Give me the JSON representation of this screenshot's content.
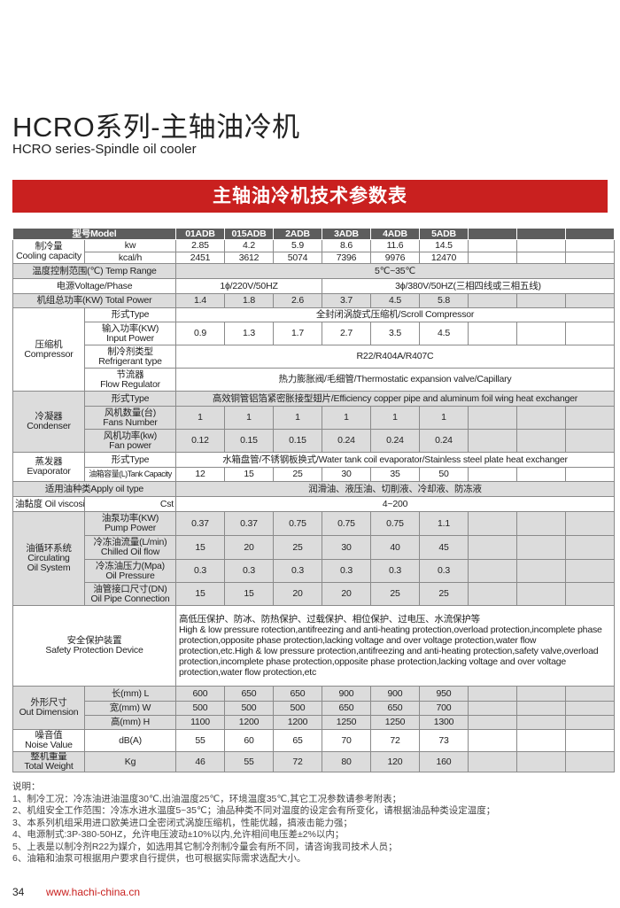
{
  "title": "HCRO系列-主轴油冷机",
  "subtitle": "HCRO series-Spindle oil cooler",
  "banner": "主轴油冷机技术参数表",
  "colors": {
    "banner": "#c9201f",
    "header_row": "#5d5d5d",
    "shaded_row": "#dcdcdc",
    "website": "#c9201f"
  },
  "table": {
    "header_label": "型号Model",
    "models": [
      "01ADB",
      "015ADB",
      "2ADB",
      "3ADB",
      "4ADB",
      "5ADB"
    ],
    "cooling": {
      "cn": "制冷量",
      "en": "Cooling capacity",
      "kw_unit": "kw",
      "kw": [
        "2.85",
        "4.2",
        "5.9",
        "8.6",
        "11.6",
        "14.5"
      ],
      "kcal_unit": "kcal/h",
      "kcal": [
        "2451",
        "3612",
        "5074",
        "7396",
        "9976",
        "12470"
      ]
    },
    "temp": {
      "label": "温度控制范围(℃) Temp Range",
      "value": "5℃~35℃"
    },
    "voltage": {
      "label": "电源Voltage/Phase",
      "single": "1ϕ/220V/50HZ",
      "three": "3ϕ/380V/50HZ(三相四线或三相五线)"
    },
    "total_power": {
      "label": "机组总功率(KW) Total Power",
      "values": [
        "1.4",
        "1.8",
        "2.6",
        "3.7",
        "4.5",
        "5.8"
      ]
    },
    "compressor": {
      "cn": "压缩机",
      "en": "Compressor",
      "type_label": "形式Type",
      "type": "全封闭涡旋式压缩机/Scroll Compressor",
      "input_cn": "输入功率(KW)",
      "input_en": "Input Power",
      "input": [
        "0.9",
        "1.3",
        "1.7",
        "2.7",
        "3.5",
        "4.5"
      ],
      "ref_cn": "制冷剂类型",
      "ref_en": "Refrigerant type",
      "ref": "R22/R404A/R407C",
      "flow_cn": "节流器",
      "flow_en": "Flow Regulator",
      "flow": "热力膨胀阀/毛细管/Thermostatic expansion valve/Capillary"
    },
    "condenser": {
      "cn": "冷凝器",
      "en": "Condenser",
      "type_label": "形式Type",
      "type": "高效铜管铝箔紧密胀接型翅片/Efficiency copper pipe and aluminum foil wing heat exchanger",
      "fans_cn": "风机数量(台)",
      "fans_en": "Fans Number",
      "fans": [
        "1",
        "1",
        "1",
        "1",
        "1",
        "1"
      ],
      "fanp_cn": "风机功率(kw)",
      "fanp_en": "Fan power",
      "fanp": [
        "0.12",
        "0.15",
        "0.15",
        "0.24",
        "0.24",
        "0.24"
      ]
    },
    "evaporator": {
      "cn": "蒸发器",
      "en": "Evaporator",
      "type_label": "形式Type",
      "type": "水箱盘管/不锈钢板换式/Water tank coil evaporator/Stainless steel plate heat exchanger",
      "tank_label": "油箱容量(L)Tank Capacity",
      "tank": [
        "12",
        "15",
        "25",
        "30",
        "35",
        "50"
      ]
    },
    "oil_type": {
      "label": "适用油种类Apply oil type",
      "value": "润滑油、液压油、切削液、冷却液、防冻液"
    },
    "viscosity": {
      "label": "油黏度 Oil viscosity",
      "unit": "Cst",
      "value": "4~200"
    },
    "circulating": {
      "cn": "油循环系统",
      "en1": "Circulating",
      "en2": "Oil System",
      "pump_cn": "油泵功率(KW)",
      "pump_en": "Pump Power",
      "pump": [
        "0.37",
        "0.37",
        "0.75",
        "0.75",
        "0.75",
        "1.1"
      ],
      "oflow_cn": "冷冻油流量(L/min)",
      "oflow_en": "Chilled Oil flow",
      "oflow": [
        "15",
        "20",
        "25",
        "30",
        "40",
        "45"
      ],
      "press_cn": "冷冻油压力(Mpa)",
      "press_en": "Oil Pressure",
      "press": [
        "0.3",
        "0.3",
        "0.3",
        "0.3",
        "0.3",
        "0.3"
      ],
      "pipe_cn": "油管接口尺寸(DN)",
      "pipe_en": "Oil Pipe Connection",
      "pipe": [
        "15",
        "15",
        "20",
        "20",
        "25",
        "25"
      ]
    },
    "safety": {
      "cn": "安全保护装置",
      "en": "Safety Protection Device",
      "value_cn": "高低压保护、防冰、防热保护、过载保护、相位保护、过电压、水流保护等",
      "value_en": "High & low pressure rotection,antifreezing and anti-heating protection,overload protection,incomplete phase protection,opposite phase protection,lacking voltage and over voltage protection,water flow protection,etc.High & low pressure protection,antifreezing and anti-heating protection,safety valve,overload protection,incomplete phase protection,opposite phase protection,lacking voltage and over voltage protection,water flow protection,etc"
    },
    "dimension": {
      "cn": "外形尺寸",
      "en": "Out Dimension",
      "l_label": "长(mm)  L",
      "l": [
        "600",
        "650",
        "650",
        "900",
        "900",
        "950"
      ],
      "w_label": "宽(mm)  W",
      "w": [
        "500",
        "500",
        "500",
        "650",
        "650",
        "700"
      ],
      "h_label": "高(mm)  H",
      "h": [
        "1100",
        "1200",
        "1200",
        "1250",
        "1250",
        "1300"
      ]
    },
    "noise": {
      "cn": "噪音值",
      "en": "Noise Value",
      "unit": "dB(A)",
      "values": [
        "55",
        "60",
        "65",
        "70",
        "72",
        "73"
      ]
    },
    "weight": {
      "cn": "整机重量",
      "en": "Total Weight",
      "unit": "Kg",
      "values": [
        "46",
        "55",
        "72",
        "80",
        "120",
        "160"
      ]
    }
  },
  "notes": {
    "heading": "说明：",
    "items": [
      "1、制冷工况：冷冻油进油温度30℃,出油温度25℃，环境温度35℃,其它工况参数请参考附表；",
      "2、机组安全工作范围：冷冻水进水温度5~35℃；油品种类不同对温度的设定会有所变化，请根据油品种类设定温度；",
      "3、本系列机组采用进口欧美进口全密闭式涡旋压缩机，性能优越，搞液击能力强；",
      "4、电源制式:3P-380-50HZ，允许电压波动±10%以内,允许相间电压差±2%以内；",
      "5、上表是以制冷剂R22为媒介，如选用其它制冷剂制冷量会有所不同，请咨询我司技术人员；",
      "6、油箱和油泵可根据用户要求自行提供，也可根据实际需求选配大小。"
    ]
  },
  "footer": {
    "page": "34",
    "website": "www.hachi-china.cn"
  }
}
